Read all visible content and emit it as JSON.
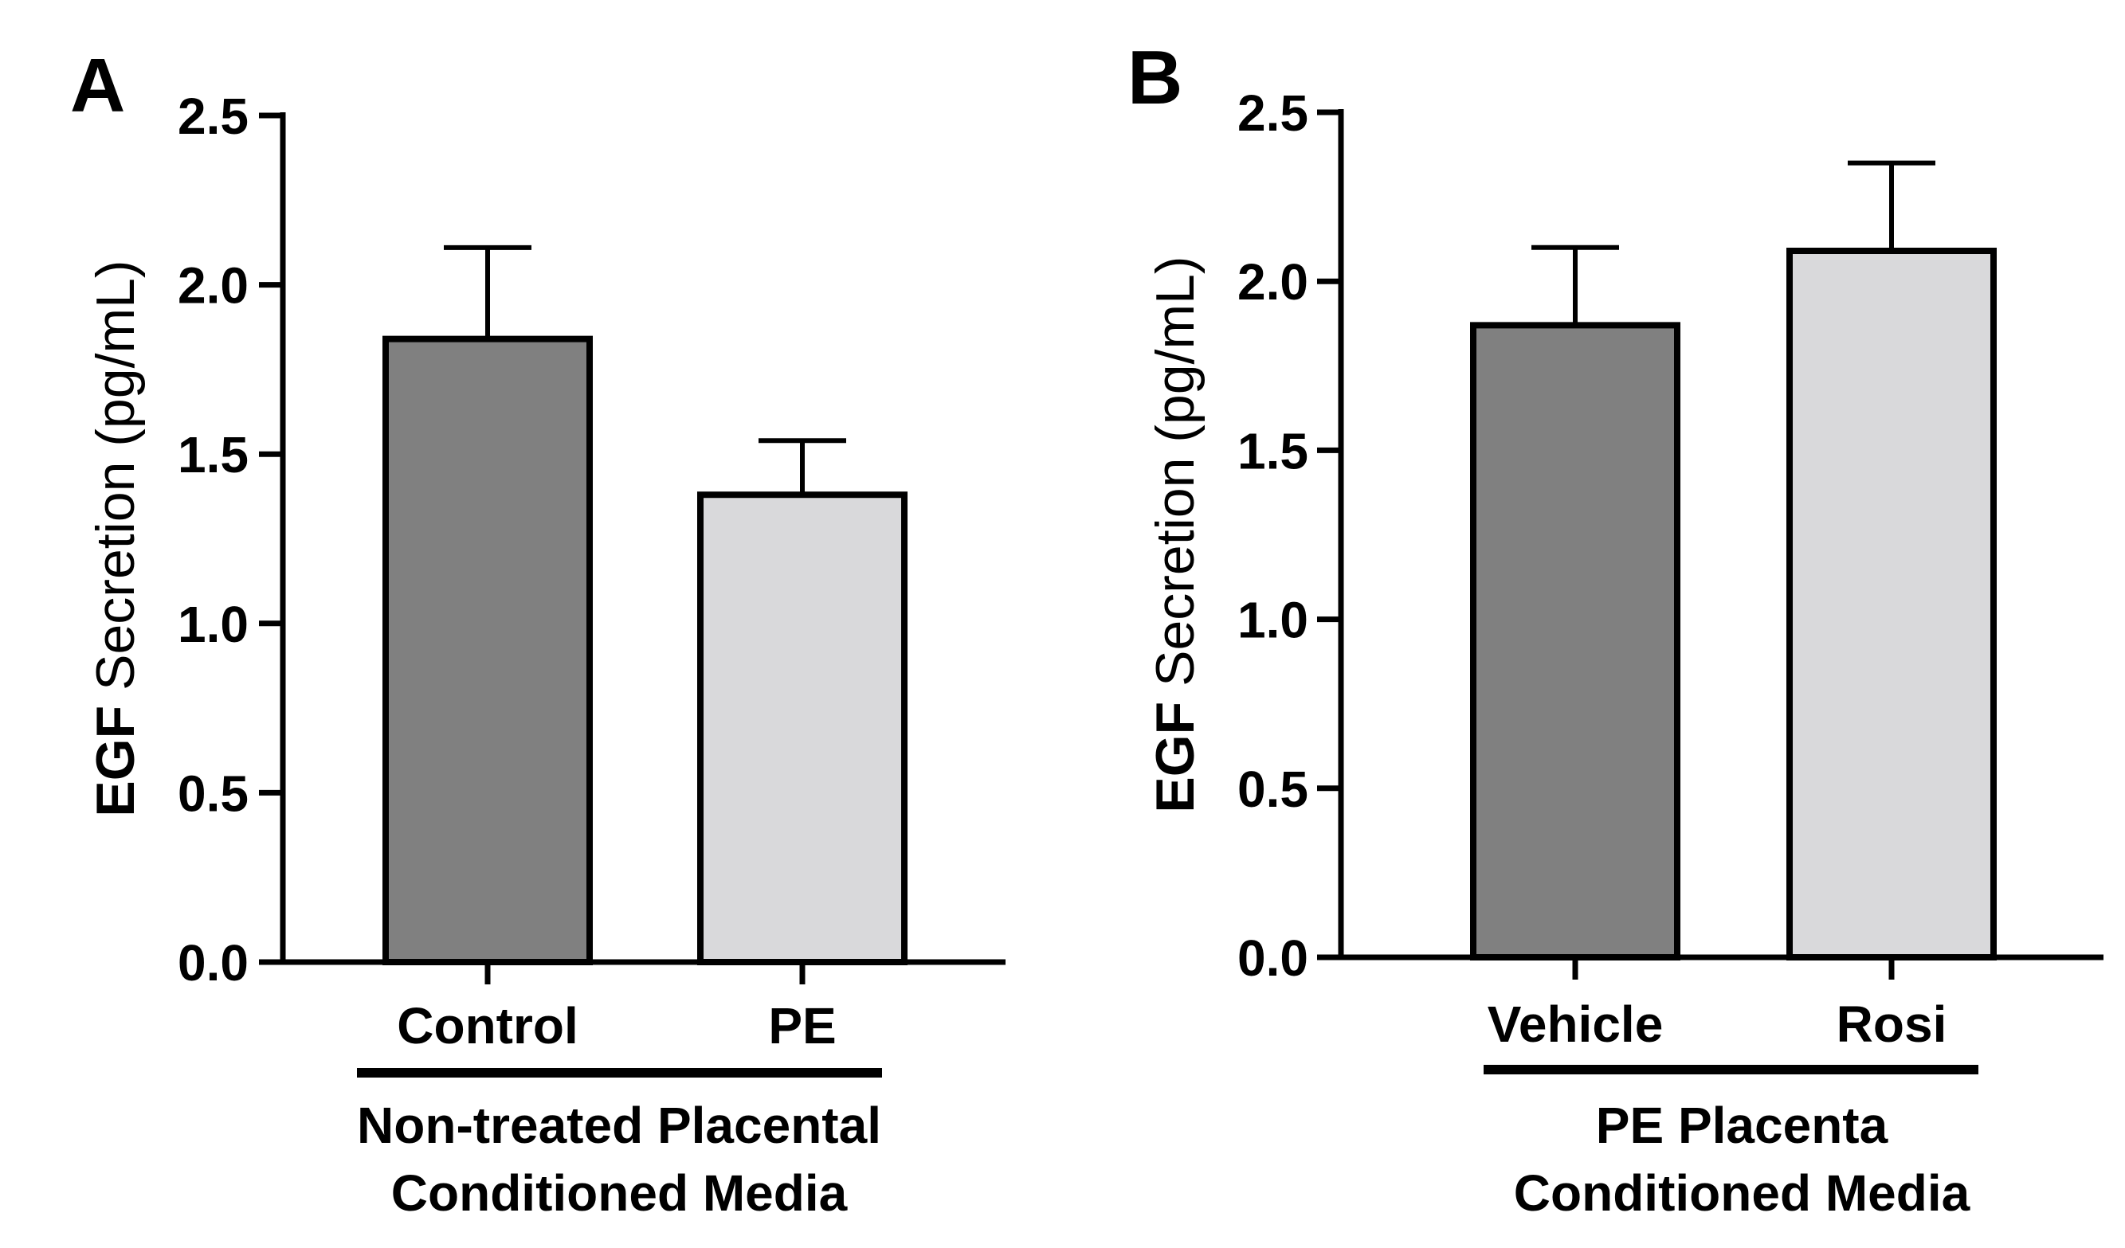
{
  "chart_data": [
    {
      "type": "bar",
      "panel": "A",
      "categories": [
        "Control",
        "PE"
      ],
      "values": [
        1.84,
        1.38
      ],
      "errors": [
        0.27,
        0.16
      ],
      "colors": [
        "#808080",
        "#d9d9db"
      ],
      "ylabel_bold": "EGF",
      "ylabel_rest": "Secretion (pg/mL)",
      "group_label_lines": [
        "Non-treated Placental",
        "Conditioned Media"
      ],
      "ylim": [
        0,
        2.5
      ],
      "yticks": [
        0.0,
        0.5,
        1.0,
        1.5,
        2.0,
        2.5
      ],
      "ytick_labels": [
        "0.0",
        "0.5",
        "1.0",
        "1.5",
        "2.0",
        "2.5"
      ]
    },
    {
      "type": "bar",
      "panel": "B",
      "categories": [
        "Vehicle",
        "Rosi"
      ],
      "values": [
        1.87,
        2.09
      ],
      "errors": [
        0.23,
        0.26
      ],
      "colors": [
        "#808080",
        "#d9d9db"
      ],
      "ylabel_bold": "EGF",
      "ylabel_rest": "Secretion (pg/mL)",
      "group_label_lines": [
        "PE Placenta",
        "Conditioned Media"
      ],
      "ylim": [
        0,
        2.5
      ],
      "yticks": [
        0.0,
        0.5,
        1.0,
        1.5,
        2.0,
        2.5
      ],
      "ytick_labels": [
        "0.0",
        "0.5",
        "1.0",
        "1.5",
        "2.0",
        "2.5"
      ]
    }
  ]
}
